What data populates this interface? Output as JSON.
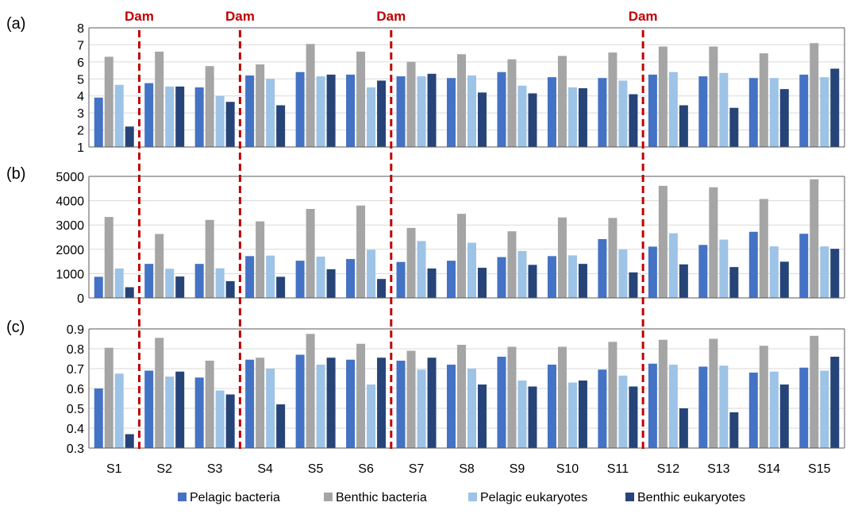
{
  "chart_data": {
    "type": "bar",
    "categories": [
      "S1",
      "S2",
      "S3",
      "S4",
      "S5",
      "S6",
      "S7",
      "S8",
      "S9",
      "S10",
      "S11",
      "S12",
      "S13",
      "S14",
      "S15"
    ],
    "legend": {
      "placement": "bottom",
      "entries": [
        "Pelagic bacteria",
        "Benthic bacteria",
        "Pelagic eukaryotes",
        "Benthic eukaryotes"
      ]
    },
    "series_colors": [
      "#4472C4",
      "#A5A5A5",
      "#9DC3E6",
      "#264478"
    ],
    "dam": {
      "label": "Dam",
      "color": "#C00000",
      "after_categories": [
        "S1",
        "S3",
        "S6",
        "S11"
      ]
    },
    "panels": [
      {
        "label": "(a)",
        "ylim": [
          1,
          8
        ],
        "yticks": [
          "1",
          "2",
          "3",
          "4",
          "5",
          "6",
          "7",
          "8"
        ],
        "tick_values": [
          1,
          2,
          3,
          4,
          5,
          6,
          7,
          8
        ],
        "grid": true,
        "series": [
          {
            "name": "Pelagic bacteria",
            "values": [
              3.9,
              4.75,
              4.5,
              5.2,
              5.4,
              5.25,
              5.15,
              5.05,
              5.4,
              5.1,
              5.05,
              5.25,
              5.15,
              5.05,
              5.25
            ]
          },
          {
            "name": "Benthic bacteria",
            "values": [
              6.3,
              6.6,
              5.75,
              5.85,
              7.05,
              6.6,
              6.0,
              6.45,
              6.15,
              6.35,
              6.55,
              6.9,
              6.9,
              6.5,
              7.1
            ]
          },
          {
            "name": "Pelagic eukaryotes",
            "values": [
              4.65,
              4.55,
              4.0,
              5.0,
              5.15,
              4.5,
              5.15,
              5.2,
              4.6,
              4.5,
              4.9,
              5.4,
              5.35,
              5.05,
              5.1
            ]
          },
          {
            "name": "Benthic eukaryotes",
            "values": [
              2.2,
              4.55,
              3.65,
              3.45,
              5.25,
              4.9,
              5.3,
              4.2,
              4.15,
              4.45,
              4.1,
              3.45,
              3.3,
              4.4,
              5.6
            ]
          }
        ]
      },
      {
        "label": "(b)",
        "ylim": [
          0,
          5000
        ],
        "yticks": [
          "0",
          "1000",
          "2000",
          "3000",
          "4000",
          "5000"
        ],
        "tick_values": [
          0,
          1000,
          2000,
          3000,
          4000,
          5000
        ],
        "grid": true,
        "series": [
          {
            "name": "Pelagic bacteria",
            "values": [
              870,
              1400,
              1400,
              1720,
              1530,
              1600,
              1480,
              1530,
              1680,
              1720,
              2420,
              2110,
              2180,
              2720,
              2640
            ]
          },
          {
            "name": "Benthic bacteria",
            "values": [
              3330,
              2630,
              3210,
              3150,
              3660,
              3800,
              2880,
              3460,
              2740,
              3310,
              3290,
              4610,
              4550,
              4070,
              4880
            ]
          },
          {
            "name": "Pelagic eukaryotes",
            "values": [
              1210,
              1200,
              1220,
              1740,
              1700,
              1980,
              2340,
              2270,
              1930,
              1750,
              1990,
              2660,
              2400,
              2120,
              2120
            ]
          },
          {
            "name": "Benthic eukaryotes",
            "values": [
              440,
              880,
              690,
              870,
              1180,
              780,
              1210,
              1240,
              1360,
              1400,
              1050,
              1380,
              1270,
              1490,
              2020
            ]
          }
        ]
      },
      {
        "label": "(c)",
        "ylim": [
          0.3,
          0.9
        ],
        "yticks": [
          "0.3",
          "0.4",
          "0.5",
          "0.6",
          "0.7",
          "0.8",
          "0.9"
        ],
        "tick_values": [
          0.3,
          0.4,
          0.5,
          0.6,
          0.7,
          0.8,
          0.9
        ],
        "grid": true,
        "series": [
          {
            "name": "Pelagic bacteria",
            "values": [
              0.6,
              0.69,
              0.655,
              0.745,
              0.77,
              0.745,
              0.74,
              0.72,
              0.76,
              0.72,
              0.695,
              0.725,
              0.71,
              0.68,
              0.705
            ]
          },
          {
            "name": "Benthic bacteria",
            "values": [
              0.805,
              0.855,
              0.74,
              0.755,
              0.875,
              0.825,
              0.79,
              0.82,
              0.81,
              0.81,
              0.835,
              0.845,
              0.85,
              0.815,
              0.865
            ]
          },
          {
            "name": "Pelagic eukaryotes",
            "values": [
              0.675,
              0.66,
              0.59,
              0.7,
              0.72,
              0.62,
              0.695,
              0.7,
              0.64,
              0.63,
              0.665,
              0.72,
              0.715,
              0.685,
              0.69
            ]
          },
          {
            "name": "Benthic eukaryotes",
            "values": [
              0.37,
              0.685,
              0.57,
              0.52,
              0.755,
              0.755,
              0.755,
              0.62,
              0.61,
              0.64,
              0.61,
              0.5,
              0.48,
              0.62,
              0.76
            ]
          }
        ]
      }
    ]
  }
}
